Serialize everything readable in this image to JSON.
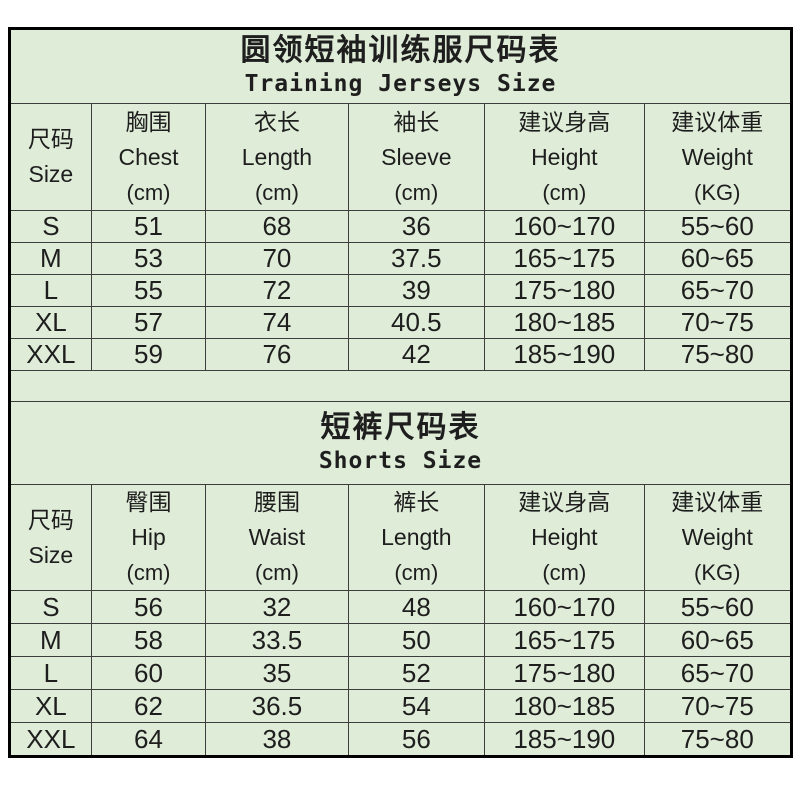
{
  "page": {
    "background": "#ffffff",
    "sheet_background": "#dfecd8",
    "outer_border_color": "#000000",
    "inner_border_color": "#3d3d3d",
    "text_color": "#1e1e1e"
  },
  "tables": [
    {
      "title_zh": "圆领短袖训练服尺码表",
      "title_en": "Training Jerseys Size",
      "columns": [
        {
          "zh": "尺码",
          "en": "Size",
          "unit": ""
        },
        {
          "zh": "胸围",
          "en": "Chest",
          "unit": "(cm)"
        },
        {
          "zh": "衣长",
          "en": "Length",
          "unit": "(cm)"
        },
        {
          "zh": "袖长",
          "en": "Sleeve",
          "unit": "(cm)"
        },
        {
          "zh": "建议身高",
          "en": "Height",
          "unit": "(cm)"
        },
        {
          "zh": "建议体重",
          "en": "Weight",
          "unit": "(KG)"
        }
      ],
      "rows": [
        [
          "S",
          "51",
          "68",
          "36",
          "160~170",
          "55~60"
        ],
        [
          "M",
          "53",
          "70",
          "37.5",
          "165~175",
          "60~65"
        ],
        [
          "L",
          "55",
          "72",
          "39",
          "175~180",
          "65~70"
        ],
        [
          "XL",
          "57",
          "74",
          "40.5",
          "180~185",
          "70~75"
        ],
        [
          "XXL",
          "59",
          "76",
          "42",
          "185~190",
          "75~80"
        ]
      ]
    },
    {
      "title_zh": "短裤尺码表",
      "title_en": "Shorts Size",
      "columns": [
        {
          "zh": "尺码",
          "en": "Size",
          "unit": ""
        },
        {
          "zh": "臀围",
          "en": "Hip",
          "unit": "(cm)"
        },
        {
          "zh": "腰围",
          "en": "Waist",
          "unit": "(cm)"
        },
        {
          "zh": "裤长",
          "en": "Length",
          "unit": "(cm)"
        },
        {
          "zh": "建议身高",
          "en": "Height",
          "unit": "(cm)"
        },
        {
          "zh": "建议体重",
          "en": "Weight",
          "unit": "(KG)"
        }
      ],
      "rows": [
        [
          "S",
          "56",
          "32",
          "48",
          "160~170",
          "55~60"
        ],
        [
          "M",
          "58",
          "33.5",
          "50",
          "165~175",
          "60~65"
        ],
        [
          "L",
          "60",
          "35",
          "52",
          "175~180",
          "65~70"
        ],
        [
          "XL",
          "62",
          "36.5",
          "54",
          "180~185",
          "70~75"
        ],
        [
          "XXL",
          "64",
          "38",
          "56",
          "185~190",
          "75~80"
        ]
      ]
    }
  ],
  "layout": {
    "column_width_percents": [
      10.45,
      14.65,
      18.2,
      17.45,
      20.4,
      18.85
    ]
  }
}
